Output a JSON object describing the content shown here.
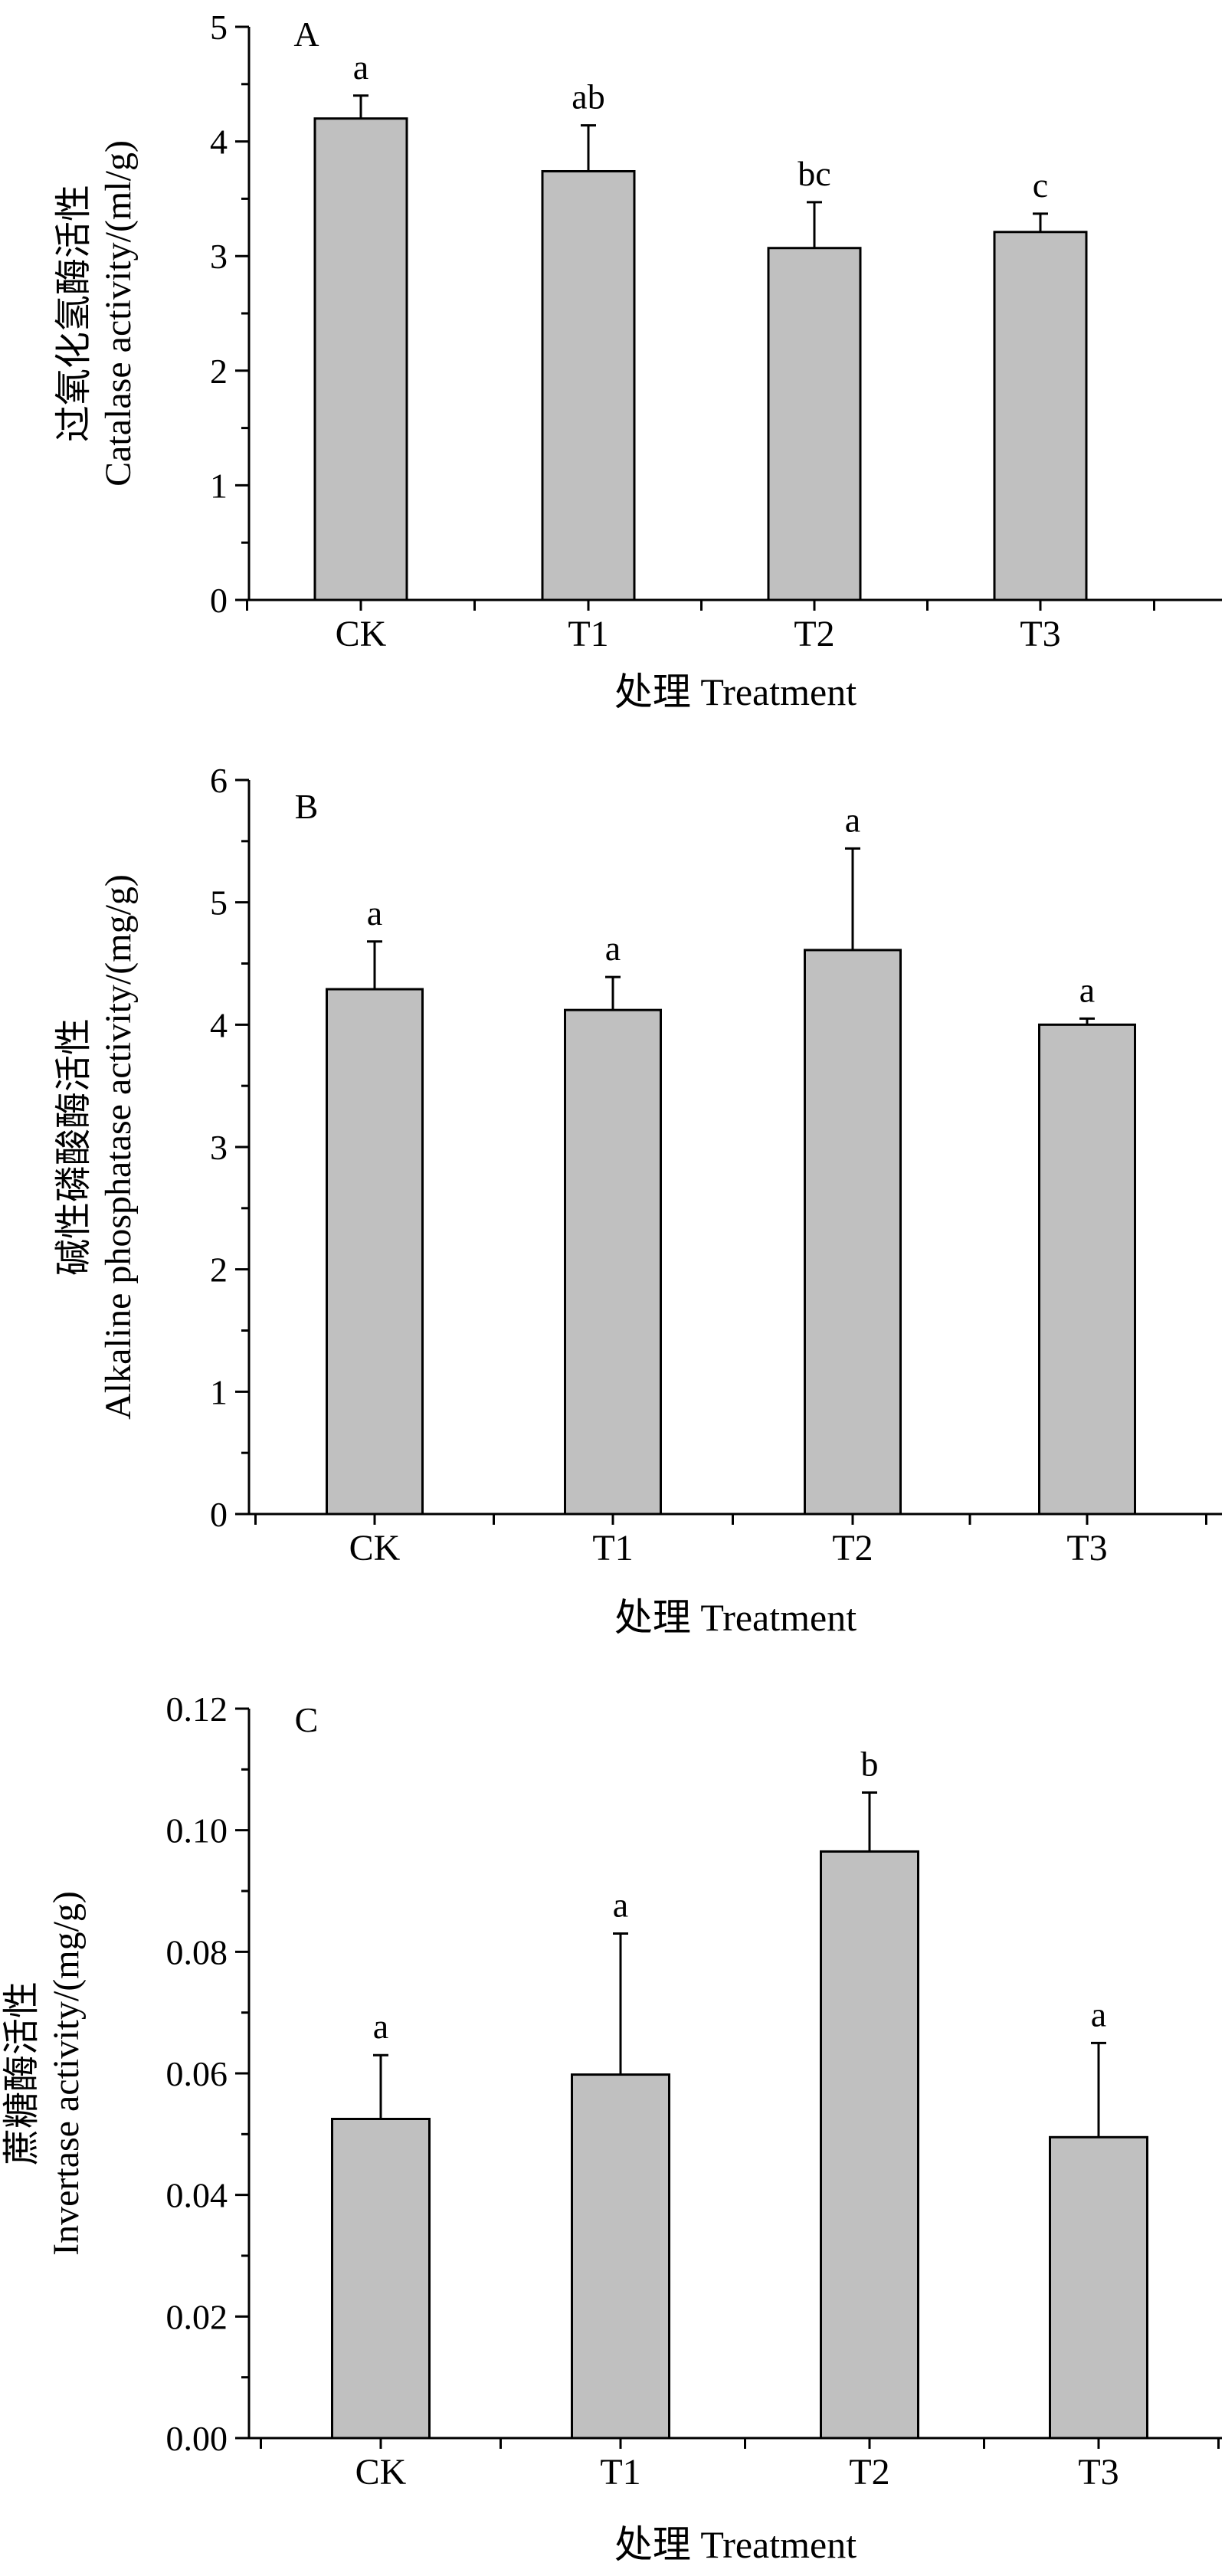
{
  "figure": {
    "background": "#ffffff"
  },
  "chart_data": [
    {
      "type": "bar",
      "panel_label": "A",
      "categories": [
        "CK",
        "T1",
        "T2",
        "T3"
      ],
      "values": [
        4.2,
        3.74,
        3.07,
        3.21
      ],
      "errors": [
        0.2,
        0.4,
        0.4,
        0.16
      ],
      "significance_letters": [
        "a",
        "ab",
        "bc",
        "c"
      ],
      "ylabel_cn": "过氧化氢酶活性",
      "ylabel_en": "Catalase activity/(ml/g)",
      "xlabel": "处理 Treatment",
      "ylim": [
        0,
        5
      ],
      "yticks": [
        0,
        1,
        2,
        3,
        4,
        5
      ],
      "ytick_labels": [
        "0",
        "1",
        "2",
        "3",
        "4",
        "5"
      ],
      "bar_color": "#c0c0c0",
      "grid": false
    },
    {
      "type": "bar",
      "panel_label": "B",
      "categories": [
        "CK",
        "T1",
        "T2",
        "T3"
      ],
      "values": [
        4.29,
        4.12,
        4.61,
        4.0
      ],
      "errors": [
        0.39,
        0.27,
        0.83,
        0.05
      ],
      "significance_letters": [
        "a",
        "a",
        "a",
        "a"
      ],
      "ylabel_cn": "碱性磷酸酶活性",
      "ylabel_en": "Alkaline phosphatase activity/(mg/g)",
      "xlabel": "处理 Treatment",
      "ylim": [
        0,
        6
      ],
      "yticks": [
        0,
        1,
        2,
        3,
        4,
        5,
        6
      ],
      "ytick_labels": [
        "0",
        "1",
        "2",
        "3",
        "4",
        "5",
        "6"
      ],
      "bar_color": "#c0c0c0",
      "grid": false
    },
    {
      "type": "bar",
      "panel_label": "C",
      "categories": [
        "CK",
        "T1",
        "T2",
        "T3"
      ],
      "values": [
        0.0525,
        0.0598,
        0.0965,
        0.0495
      ],
      "errors": [
        0.0105,
        0.0232,
        0.0097,
        0.0155
      ],
      "significance_letters": [
        "a",
        "a",
        "b",
        "a"
      ],
      "ylabel_cn": "蔗糖酶活性",
      "ylabel_en": "Invertase activity/(mg/g)",
      "xlabel": "处理  Treatment",
      "ylim": [
        0,
        0.12
      ],
      "yticks": [
        0,
        0.02,
        0.04,
        0.06,
        0.08,
        0.1,
        0.12
      ],
      "ytick_labels": [
        "0.00",
        "0.02",
        "0.04",
        "0.06",
        "0.08",
        "0.10",
        "0.12"
      ],
      "bar_color": "#c0c0c0",
      "grid": false
    }
  ]
}
